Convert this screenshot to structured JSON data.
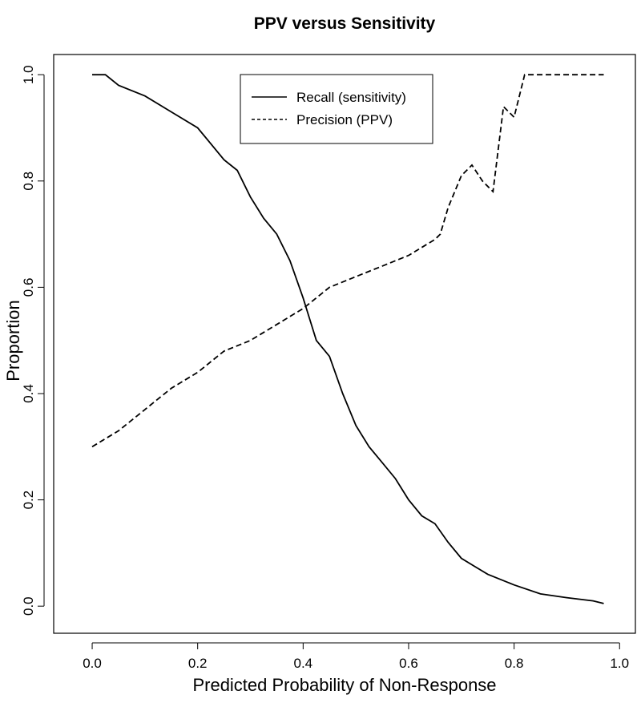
{
  "chart_data": {
    "type": "line",
    "title": "PPV versus Sensitivity",
    "x_label": "Predicted Probability of Non-Response",
    "y_label": "Proportion",
    "xlim": [
      -0.073,
      1.03
    ],
    "ylim": [
      -0.051,
      1.038
    ],
    "xticks": [
      {
        "value": 0,
        "label": "0.0"
      },
      0.2,
      0.4,
      0.6,
      0.8,
      {
        "value": 1,
        "label": "1.0"
      }
    ],
    "yticks": [
      {
        "value": 0,
        "label": "0.0"
      },
      0.2,
      0.4,
      0.6,
      0.8,
      {
        "value": 1,
        "label": "1.0"
      }
    ],
    "legend": "top",
    "series": [
      {
        "name": "Recall (sensitivity)",
        "color": "#000000",
        "linestyle": "solid",
        "x": [
          0,
          0.025,
          0.05,
          0.1,
          0.15,
          0.2,
          0.25,
          0.275,
          0.3,
          0.325,
          0.35,
          0.375,
          0.4,
          0.425,
          0.45,
          0.475,
          0.5,
          0.525,
          0.55,
          0.575,
          0.6,
          0.625,
          0.65,
          0.675,
          0.7,
          0.725,
          0.75,
          0.8,
          0.85,
          0.9,
          0.95,
          0.97
        ],
        "values": [
          1.0,
          1.0,
          0.98,
          0.96,
          0.93,
          0.9,
          0.84,
          0.82,
          0.77,
          0.73,
          0.7,
          0.65,
          0.58,
          0.5,
          0.47,
          0.4,
          0.34,
          0.3,
          0.27,
          0.24,
          0.2,
          0.17,
          0.155,
          0.12,
          0.09,
          0.075,
          0.06,
          0.04,
          0.023,
          0.016,
          0.01,
          0.005
        ]
      },
      {
        "name": "Precision (PPV)",
        "color": "#000000",
        "linestyle": "dashed",
        "x": [
          0,
          0.05,
          0.1,
          0.15,
          0.2,
          0.25,
          0.3,
          0.35,
          0.4,
          0.45,
          0.5,
          0.55,
          0.6,
          0.65,
          0.66,
          0.675,
          0.7,
          0.72,
          0.74,
          0.76,
          0.78,
          0.8,
          0.82,
          0.97
        ],
        "values": [
          0.3,
          0.33,
          0.37,
          0.41,
          0.44,
          0.48,
          0.5,
          0.53,
          0.56,
          0.6,
          0.62,
          0.64,
          0.66,
          0.69,
          0.7,
          0.75,
          0.81,
          0.83,
          0.8,
          0.78,
          0.94,
          0.92,
          1.0,
          1.0
        ]
      }
    ]
  }
}
